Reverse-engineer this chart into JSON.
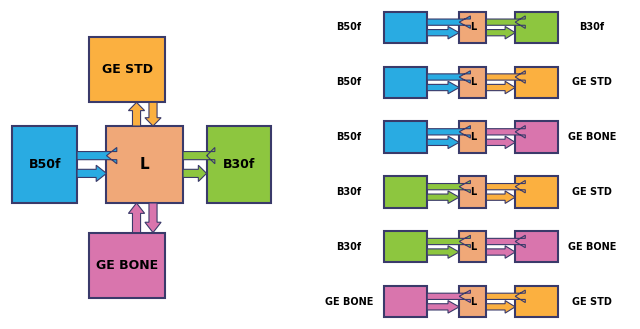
{
  "colors": {
    "blue": "#29ABE2",
    "green": "#8DC63F",
    "orange": "#F7941D",
    "salmon": "#F0A07A",
    "yellow": "#FBB040",
    "purple": "#D975AD",
    "dark": "#3A3A6A",
    "bg": "#FFFFFF"
  },
  "right_pairs": [
    {
      "left_label": "B50f",
      "left_color": "#29ABE2",
      "right_label": "B30f",
      "right_color": "#8DC63F",
      "arrow_left": "#29ABE2",
      "arrow_right": "#8DC63F"
    },
    {
      "left_label": "B50f",
      "left_color": "#29ABE2",
      "right_label": "GE STD",
      "right_color": "#FBB040",
      "arrow_left": "#29ABE2",
      "arrow_right": "#FBB040"
    },
    {
      "left_label": "B50f",
      "left_color": "#29ABE2",
      "right_label": "GE BONE",
      "right_color": "#D975AD",
      "arrow_left": "#29ABE2",
      "arrow_right": "#D975AD"
    },
    {
      "left_label": "B30f",
      "left_color": "#8DC63F",
      "right_label": "GE STD",
      "right_color": "#FBB040",
      "arrow_left": "#8DC63F",
      "arrow_right": "#FBB040"
    },
    {
      "left_label": "B30f",
      "left_color": "#8DC63F",
      "right_label": "GE BONE",
      "right_color": "#D975AD",
      "arrow_left": "#8DC63F",
      "arrow_right": "#D975AD"
    },
    {
      "left_label": "GE BONE",
      "left_color": "#D975AD",
      "right_label": "GE STD",
      "right_color": "#FBB040",
      "arrow_left": "#D975AD",
      "arrow_right": "#FBB040"
    }
  ]
}
